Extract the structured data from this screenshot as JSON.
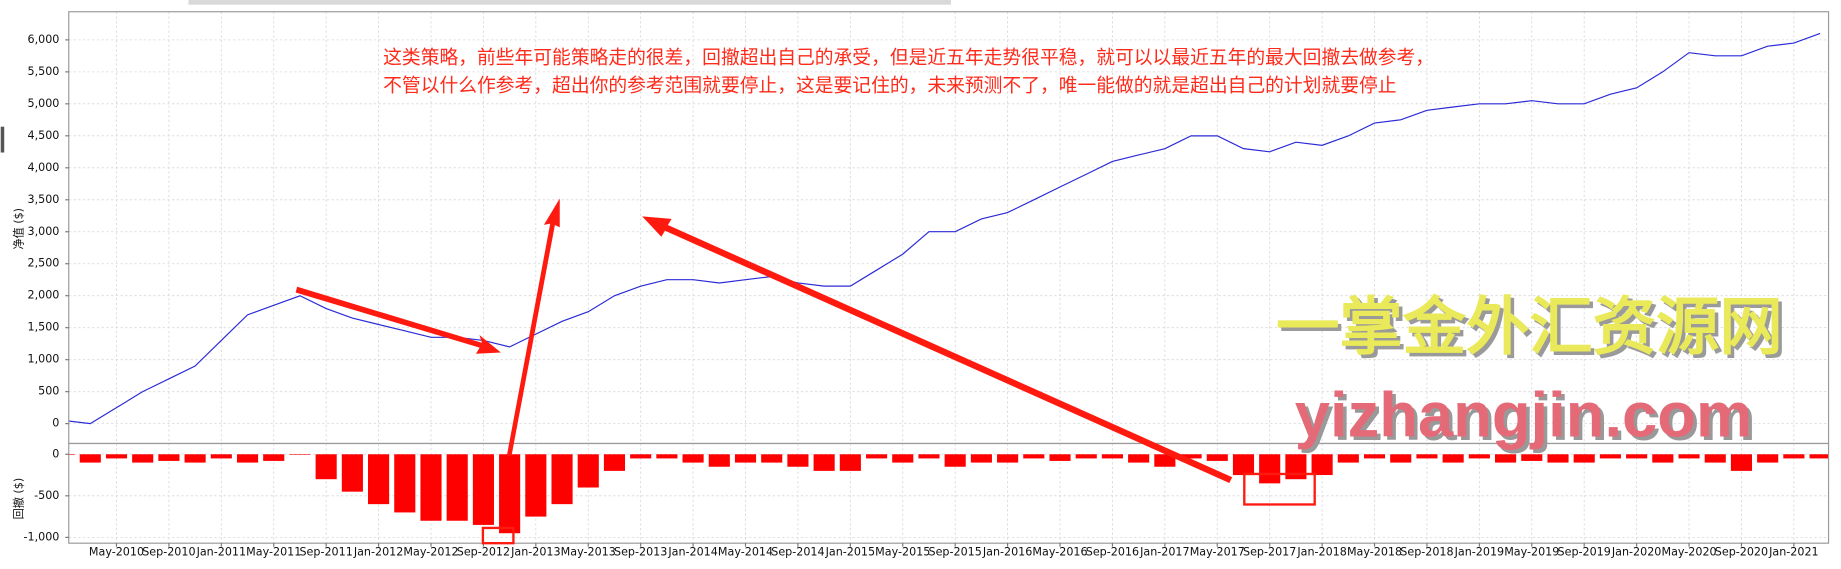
{
  "chart_data": [
    {
      "type": "line",
      "color": "#2b2bd6",
      "grid": true,
      "ylabel": "净值 ($)",
      "annotations": [
        "这类策略，前些年可能策略走的很差，回撤超出自己的承受，但是近五年走势很平稳，就可以以最近五年的最大回撤去做参考，",
        "不管以什么作参考，超出你的参考范围就要停止，这是要记住的，未来预测不了，唯一能做的就是超出自己的计划就要停止"
      ],
      "watermark": [
        "一掌金外汇资源网",
        "yizhangjin.com"
      ],
      "x": [
        "Jan-2010",
        "Mar-2010",
        "May-2010",
        "Jul-2010",
        "Sep-2010",
        "Nov-2010",
        "Jan-2011",
        "Mar-2011",
        "May-2011",
        "Jul-2011",
        "Sep-2011",
        "Nov-2011",
        "Jan-2012",
        "Mar-2012",
        "May-2012",
        "Jul-2012",
        "Sep-2012",
        "Nov-2012",
        "Jan-2013",
        "Mar-2013",
        "May-2013",
        "Jul-2013",
        "Sep-2013",
        "Nov-2013",
        "Jan-2014",
        "Mar-2014",
        "May-2014",
        "Jul-2014",
        "Sep-2014",
        "Nov-2014",
        "Jan-2015",
        "Mar-2015",
        "May-2015",
        "Jul-2015",
        "Sep-2015",
        "Nov-2015",
        "Jan-2016",
        "Mar-2016",
        "May-2016",
        "Jul-2016",
        "Sep-2016",
        "Nov-2016",
        "Jan-2017",
        "Mar-2017",
        "May-2017",
        "Jul-2017",
        "Sep-2017",
        "Nov-2017",
        "Jan-2018",
        "Mar-2018",
        "May-2018",
        "Jul-2018",
        "Sep-2018",
        "Nov-2018",
        "Jan-2019",
        "Mar-2019",
        "May-2019",
        "Jul-2019",
        "Sep-2019",
        "Nov-2019",
        "Jan-2020",
        "Mar-2020",
        "May-2020",
        "Jul-2020",
        "Sep-2020",
        "Nov-2020",
        "Jan-2021",
        "Mar-2021"
      ],
      "values": [
        50,
        0,
        250,
        500,
        700,
        900,
        1300,
        1700,
        1850,
        2000,
        1800,
        1650,
        1550,
        1450,
        1350,
        1350,
        1300,
        1200,
        1400,
        1600,
        1750,
        2000,
        2150,
        2250,
        2250,
        2200,
        2250,
        2300,
        2200,
        2150,
        2150,
        2400,
        2650,
        3000,
        3000,
        3200,
        3300,
        3500,
        3700,
        3900,
        4100,
        4200,
        4300,
        4500,
        4500,
        4300,
        4250,
        4400,
        4350,
        4500,
        4700,
        4750,
        4900,
        4950,
        5000,
        5000,
        5050,
        5000,
        5000,
        5150,
        5250,
        5500,
        5800,
        5750,
        5750,
        5900,
        5950,
        6100
      ],
      "ylim": [
        -310,
        6440
      ],
      "yticks": [
        0,
        500,
        {
          "value": 1000,
          "label": "1,000"
        },
        {
          "value": 1500,
          "label": "1,500"
        },
        {
          "value": 2000,
          "label": "2,000"
        },
        {
          "value": 2500,
          "label": "2,500"
        },
        {
          "value": 3000,
          "label": "3,000"
        },
        {
          "value": 3500,
          "label": "3,500"
        },
        {
          "value": 4000,
          "label": "4,000"
        },
        {
          "value": 4500,
          "label": "4,500"
        },
        {
          "value": 5000,
          "label": "5,000"
        },
        {
          "value": 5500,
          "label": "5,500"
        },
        {
          "value": 6000,
          "label": "6,000"
        }
      ]
    },
    {
      "type": "bar",
      "color": "#ff0000",
      "grid": true,
      "ylabel": "回撤 ($)",
      "categories": [
        "Jan-2010",
        "Mar-2010",
        "May-2010",
        "Jul-2010",
        "Sep-2010",
        "Nov-2010",
        "Jan-2011",
        "Mar-2011",
        "May-2011",
        "Jul-2011",
        "Sep-2011",
        "Nov-2011",
        "Jan-2012",
        "Mar-2012",
        "May-2012",
        "Jul-2012",
        "Sep-2012",
        "Nov-2012",
        "Jan-2013",
        "Mar-2013",
        "May-2013",
        "Jul-2013",
        "Sep-2013",
        "Nov-2013",
        "Jan-2014",
        "Mar-2014",
        "May-2014",
        "Jul-2014",
        "Sep-2014",
        "Nov-2014",
        "Jan-2015",
        "Mar-2015",
        "May-2015",
        "Jul-2015",
        "Sep-2015",
        "Nov-2015",
        "Jan-2016",
        "Mar-2016",
        "May-2016",
        "Jul-2016",
        "Sep-2016",
        "Nov-2016",
        "Jan-2017",
        "Mar-2017",
        "May-2017",
        "Jul-2017",
        "Sep-2017",
        "Nov-2017",
        "Jan-2018",
        "Mar-2018",
        "May-2018",
        "Jul-2018",
        "Sep-2018",
        "Nov-2018",
        "Jan-2019",
        "Mar-2019",
        "May-2019",
        "Jul-2019",
        "Sep-2019",
        "Nov-2019",
        "Jan-2020",
        "Mar-2020",
        "May-2020",
        "Jul-2020",
        "Sep-2020",
        "Nov-2020",
        "Jan-2021",
        "Mar-2021"
      ],
      "values": [
        0,
        -100,
        -50,
        -100,
        -80,
        -100,
        -50,
        -100,
        -80,
        0,
        -300,
        -450,
        -600,
        -700,
        -800,
        -800,
        -850,
        -950,
        -750,
        -600,
        -400,
        -200,
        -50,
        -50,
        -100,
        -150,
        -100,
        -100,
        -150,
        -200,
        -200,
        -50,
        -100,
        -50,
        -150,
        -100,
        -100,
        -50,
        -80,
        -50,
        -50,
        -100,
        -150,
        -50,
        -80,
        -250,
        -350,
        -300,
        -250,
        -100,
        -50,
        -100,
        -50,
        -100,
        -50,
        -100,
        -80,
        -100,
        -100,
        -50,
        -50,
        -100,
        -50,
        -100,
        -200,
        -100,
        -50,
        -50
      ],
      "ylim": [
        -1070,
        130
      ],
      "yticks": [
        0,
        -500,
        {
          "value": -1000,
          "label": "-1,000"
        }
      ],
      "xticks": [
        "May-2010",
        "Sep-2010",
        "Jan-2011",
        "May-2011",
        "Sep-2011",
        "Jan-2012",
        "May-2012",
        "Sep-2012",
        "Jan-2013",
        "May-2013",
        "Sep-2013",
        "Jan-2014",
        "May-2014",
        "Sep-2014",
        "Jan-2015",
        "May-2015",
        "Sep-2015",
        "Jan-2016",
        "May-2016",
        "Sep-2016",
        "Jan-2017",
        "May-2017",
        "Sep-2017",
        "Jan-2018",
        "May-2018",
        "Sep-2018",
        "Jan-2019",
        "May-2019",
        "Sep-2019",
        "Jan-2020",
        "May-2020",
        "Sep-2020",
        "Jan-2021"
      ]
    }
  ]
}
